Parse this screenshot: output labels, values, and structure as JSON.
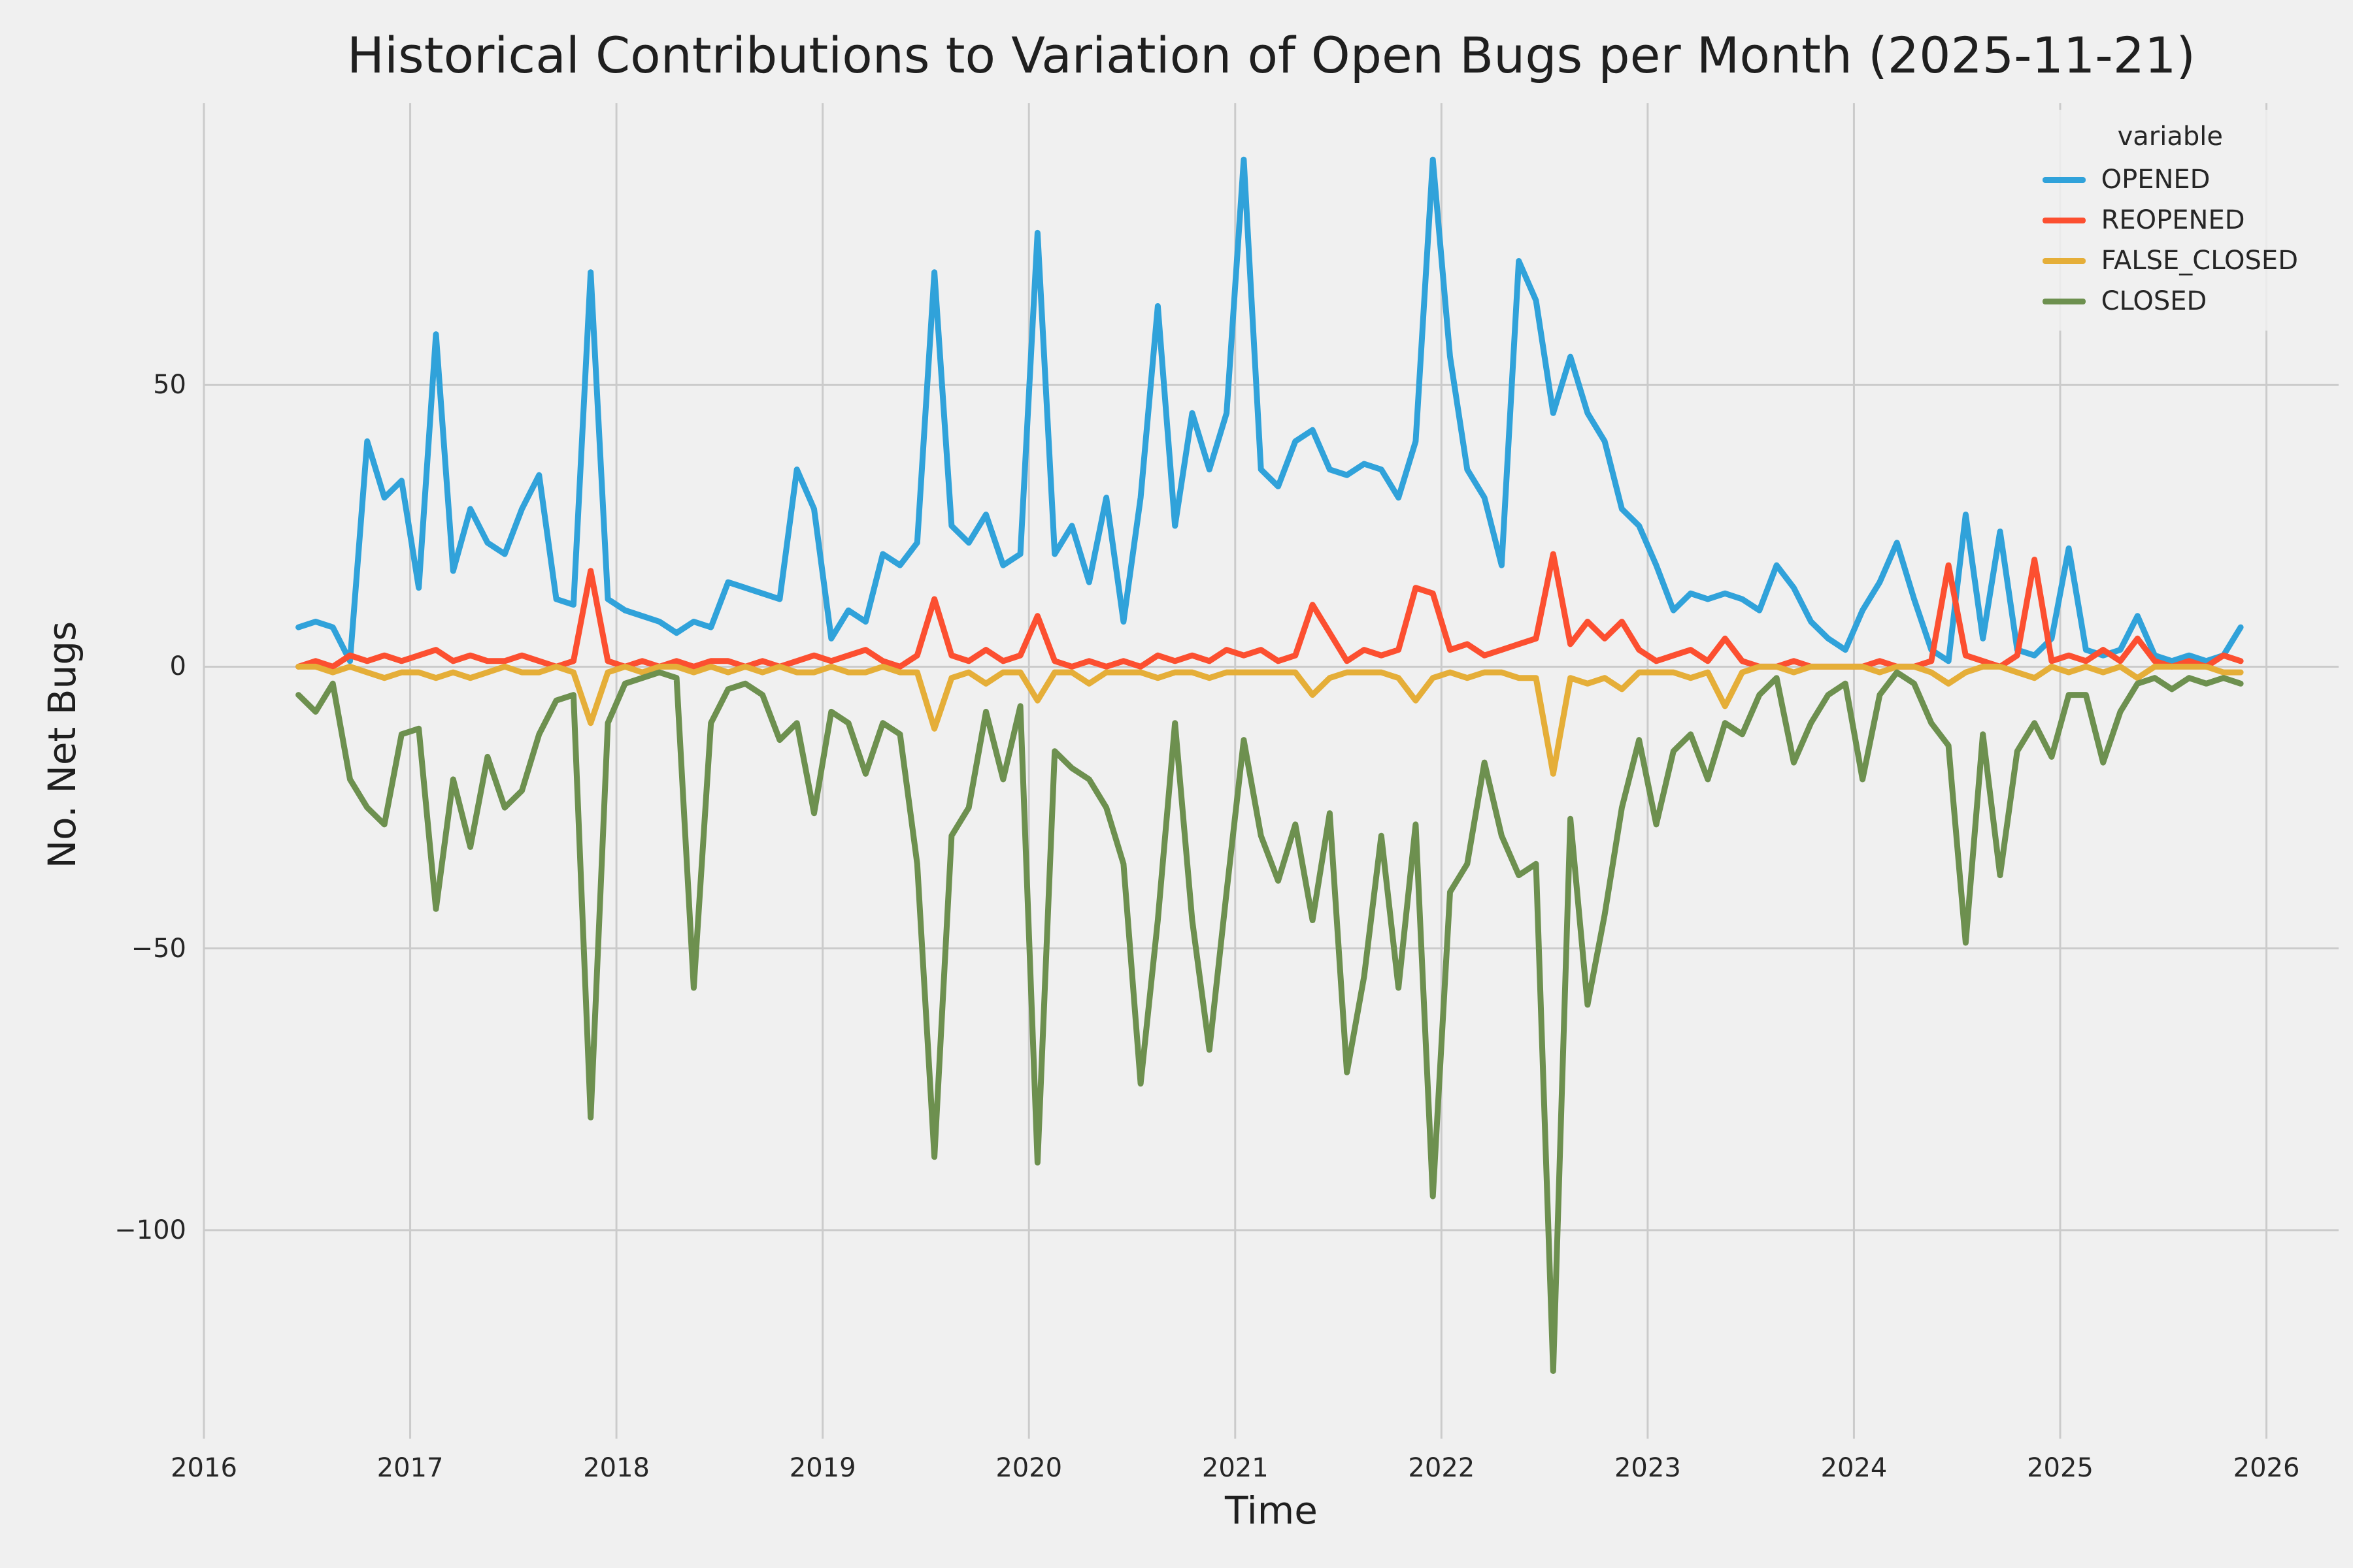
{
  "chart_data": {
    "type": "line",
    "title": "Historical Contributions to Variation of Open Bugs per Month (2025-11-21)",
    "xlabel": "Time",
    "ylabel": "No. Net Bugs",
    "legend_title": "variable",
    "legend_position": "upper right",
    "grid": true,
    "grid_color": "#cbcbcb",
    "background_color": "#f0f0f0",
    "xlim": [
      2016.0,
      2026.35
    ],
    "ylim": [
      -137,
      100
    ],
    "x_ticks": [
      {
        "value": 2016,
        "label": "2016"
      },
      {
        "value": 2017,
        "label": "2017"
      },
      {
        "value": 2018,
        "label": "2018"
      },
      {
        "value": 2019,
        "label": "2019"
      },
      {
        "value": 2020,
        "label": "2020"
      },
      {
        "value": 2021,
        "label": "2021"
      },
      {
        "value": 2022,
        "label": "2022"
      },
      {
        "value": 2023,
        "label": "2023"
      },
      {
        "value": 2024,
        "label": "2024"
      },
      {
        "value": 2025,
        "label": "2025"
      },
      {
        "value": 2026,
        "label": "2026"
      }
    ],
    "y_ticks": [
      {
        "value": 50,
        "label": "50"
      },
      {
        "value": 0,
        "label": "0"
      },
      {
        "value": -50,
        "label": "−50"
      },
      {
        "value": -100,
        "label": "−100"
      }
    ],
    "x_months": [
      "2016-06",
      "2016-07",
      "2016-08",
      "2016-09",
      "2016-10",
      "2016-11",
      "2016-12",
      "2017-01",
      "2017-02",
      "2017-03",
      "2017-04",
      "2017-05",
      "2017-06",
      "2017-07",
      "2017-08",
      "2017-09",
      "2017-10",
      "2017-11",
      "2017-12",
      "2018-01",
      "2018-02",
      "2018-03",
      "2018-04",
      "2018-05",
      "2018-06",
      "2018-07",
      "2018-08",
      "2018-09",
      "2018-10",
      "2018-11",
      "2018-12",
      "2019-01",
      "2019-02",
      "2019-03",
      "2019-04",
      "2019-05",
      "2019-06",
      "2019-07",
      "2019-08",
      "2019-09",
      "2019-10",
      "2019-11",
      "2019-12",
      "2020-01",
      "2020-02",
      "2020-03",
      "2020-04",
      "2020-05",
      "2020-06",
      "2020-07",
      "2020-08",
      "2020-09",
      "2020-10",
      "2020-11",
      "2020-12",
      "2021-01",
      "2021-02",
      "2021-03",
      "2021-04",
      "2021-05",
      "2021-06",
      "2021-07",
      "2021-08",
      "2021-09",
      "2021-10",
      "2021-11",
      "2021-12",
      "2022-01",
      "2022-02",
      "2022-03",
      "2022-04",
      "2022-05",
      "2022-06",
      "2022-07",
      "2022-08",
      "2022-09",
      "2022-10",
      "2022-11",
      "2022-12",
      "2023-01",
      "2023-02",
      "2023-03",
      "2023-04",
      "2023-05",
      "2023-06",
      "2023-07",
      "2023-08",
      "2023-09",
      "2023-10",
      "2023-11",
      "2023-12",
      "2024-01",
      "2024-02",
      "2024-03",
      "2024-04",
      "2024-05",
      "2024-06",
      "2024-07",
      "2024-08",
      "2024-09",
      "2024-10",
      "2024-11",
      "2024-12",
      "2025-01",
      "2025-02",
      "2025-03",
      "2025-04",
      "2025-05",
      "2025-06",
      "2025-07",
      "2025-08",
      "2025-09",
      "2025-10",
      "2025-11"
    ],
    "series": [
      {
        "name": "OPENED",
        "color": "#30a2da",
        "values": [
          7,
          8,
          7,
          1,
          40,
          30,
          33,
          14,
          59,
          17,
          28,
          22,
          20,
          28,
          34,
          12,
          11,
          70,
          12,
          10,
          9,
          8,
          6,
          8,
          7,
          15,
          14,
          13,
          12,
          35,
          28,
          5,
          10,
          8,
          20,
          18,
          22,
          70,
          25,
          22,
          27,
          18,
          20,
          77,
          20,
          25,
          15,
          30,
          8,
          30,
          64,
          25,
          45,
          35,
          45,
          90,
          35,
          32,
          40,
          42,
          35,
          34,
          36,
          35,
          30,
          40,
          90,
          55,
          35,
          30,
          18,
          72,
          65,
          45,
          55,
          45,
          40,
          28,
          25,
          18,
          10,
          13,
          12,
          13,
          12,
          10,
          18,
          14,
          8,
          5,
          3,
          10,
          15,
          22,
          12,
          3,
          1,
          27,
          5,
          24,
          3,
          2,
          5,
          21,
          3,
          2,
          3,
          9,
          2,
          1,
          2,
          1,
          2,
          7
        ]
      },
      {
        "name": "REOPENED",
        "color": "#fc4f30",
        "values": [
          0,
          1,
          0,
          2,
          1,
          2,
          1,
          2,
          3,
          1,
          2,
          1,
          1,
          2,
          1,
          0,
          1,
          17,
          1,
          0,
          1,
          0,
          1,
          0,
          1,
          1,
          0,
          1,
          0,
          1,
          2,
          1,
          2,
          3,
          1,
          0,
          2,
          12,
          2,
          1,
          3,
          1,
          2,
          9,
          1,
          0,
          1,
          0,
          1,
          0,
          2,
          1,
          2,
          1,
          3,
          2,
          3,
          1,
          2,
          11,
          6,
          1,
          3,
          2,
          3,
          14,
          13,
          3,
          4,
          2,
          3,
          4,
          5,
          20,
          4,
          8,
          5,
          8,
          3,
          1,
          2,
          3,
          1,
          5,
          1,
          0,
          0,
          1,
          0,
          0,
          0,
          0,
          1,
          0,
          0,
          1,
          18,
          2,
          1,
          0,
          2,
          19,
          1,
          2,
          1,
          3,
          1,
          5,
          1,
          0,
          1,
          0,
          2,
          1
        ]
      },
      {
        "name": "FALSE_CLOSED",
        "color": "#e5ae38",
        "values": [
          0,
          0,
          -1,
          0,
          -1,
          -2,
          -1,
          -1,
          -2,
          -1,
          -2,
          -1,
          0,
          -1,
          -1,
          0,
          -1,
          -10,
          -1,
          0,
          -1,
          0,
          0,
          -1,
          0,
          -1,
          0,
          -1,
          0,
          -1,
          -1,
          0,
          -1,
          -1,
          0,
          -1,
          -1,
          -11,
          -2,
          -1,
          -3,
          -1,
          -1,
          -6,
          -1,
          -1,
          -3,
          -1,
          -1,
          -1,
          -2,
          -1,
          -1,
          -2,
          -1,
          -1,
          -1,
          -1,
          -1,
          -5,
          -2,
          -1,
          -1,
          -1,
          -2,
          -6,
          -2,
          -1,
          -2,
          -1,
          -1,
          -2,
          -2,
          -19,
          -2,
          -3,
          -2,
          -4,
          -1,
          -1,
          -1,
          -2,
          -1,
          -7,
          -1,
          0,
          0,
          -1,
          0,
          0,
          0,
          0,
          -1,
          0,
          0,
          -1,
          -3,
          -1,
          0,
          0,
          -1,
          -2,
          0,
          -1,
          0,
          -1,
          0,
          -2,
          0,
          0,
          0,
          0,
          -1,
          -1
        ]
      },
      {
        "name": "CLOSED",
        "color": "#6d904f",
        "values": [
          -5,
          -8,
          -3,
          -20,
          -25,
          -28,
          -12,
          -11,
          -43,
          -20,
          -32,
          -16,
          -25,
          -22,
          -12,
          -6,
          -5,
          -80,
          -10,
          -3,
          -2,
          -1,
          -2,
          -57,
          -10,
          -4,
          -3,
          -5,
          -13,
          -10,
          -26,
          -8,
          -10,
          -19,
          -10,
          -12,
          -35,
          -87,
          -30,
          -25,
          -8,
          -20,
          -7,
          -88,
          -15,
          -18,
          -20,
          -25,
          -35,
          -74,
          -45,
          -10,
          -45,
          -68,
          -40,
          -13,
          -30,
          -38,
          -28,
          -45,
          -26,
          -72,
          -55,
          -30,
          -57,
          -28,
          -94,
          -40,
          -35,
          -17,
          -30,
          -37,
          -35,
          -125,
          -27,
          -60,
          -44,
          -25,
          -13,
          -28,
          -15,
          -12,
          -20,
          -10,
          -12,
          -5,
          -2,
          -17,
          -10,
          -5,
          -3,
          -20,
          -5,
          -1,
          -3,
          -10,
          -14,
          -49,
          -12,
          -37,
          -15,
          -10,
          -16,
          -5,
          -5,
          -17,
          -8,
          -3,
          -2,
          -4,
          -2,
          -3,
          -2,
          -3
        ]
      }
    ]
  }
}
